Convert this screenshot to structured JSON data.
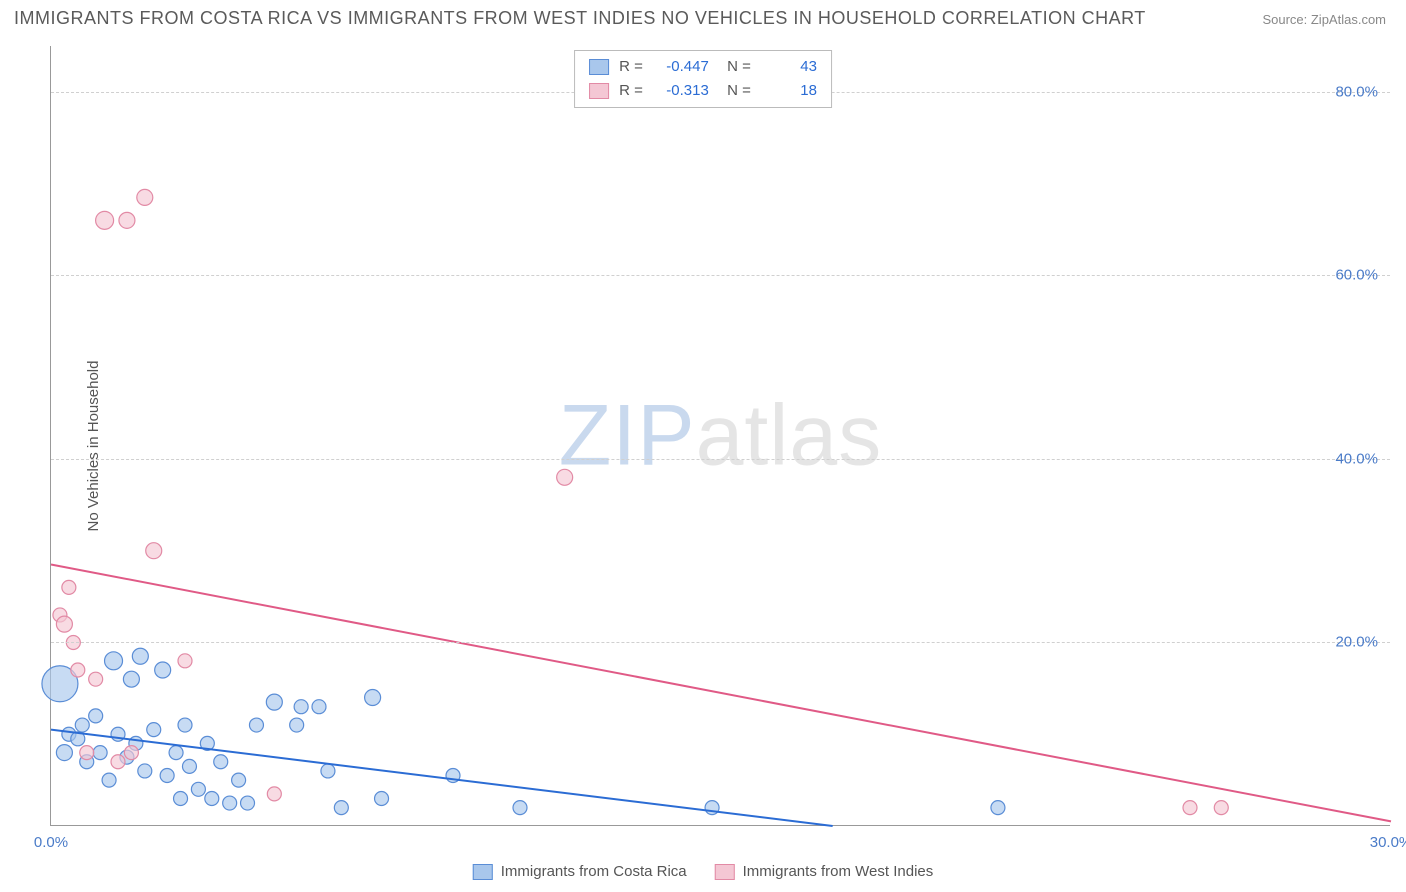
{
  "title": "IMMIGRANTS FROM COSTA RICA VS IMMIGRANTS FROM WEST INDIES NO VEHICLES IN HOUSEHOLD CORRELATION CHART",
  "source": "Source: ZipAtlas.com",
  "ylabel": "No Vehicles in Household",
  "watermark": {
    "part1": "ZIP",
    "part2": "atlas"
  },
  "chart": {
    "type": "scatter",
    "xlim": [
      0,
      30
    ],
    "ylim": [
      0,
      85
    ],
    "yticks": [
      20,
      40,
      60,
      80
    ],
    "ytick_labels": [
      "20.0%",
      "40.0%",
      "60.0%",
      "80.0%"
    ],
    "xticks": [
      0,
      30
    ],
    "xtick_labels": [
      "0.0%",
      "30.0%"
    ],
    "background_color": "#ffffff",
    "grid_color": "#d0d0d0",
    "series": [
      {
        "name": "Immigrants from Costa Rica",
        "fill": "#a9c7ec",
        "stroke": "#5a8dd6",
        "line_color": "#2b6cd4",
        "R": "-0.447",
        "N": "43",
        "trend": {
          "x1": 0,
          "y1": 10.5,
          "x2": 17.5,
          "y2": 0
        },
        "points": [
          {
            "x": 0.2,
            "y": 15.5,
            "r": 18
          },
          {
            "x": 0.3,
            "y": 8,
            "r": 8
          },
          {
            "x": 0.4,
            "y": 10,
            "r": 7
          },
          {
            "x": 0.6,
            "y": 9.5,
            "r": 7
          },
          {
            "x": 0.7,
            "y": 11,
            "r": 7
          },
          {
            "x": 0.8,
            "y": 7,
            "r": 7
          },
          {
            "x": 1.0,
            "y": 12,
            "r": 7
          },
          {
            "x": 1.1,
            "y": 8,
            "r": 7
          },
          {
            "x": 1.3,
            "y": 5,
            "r": 7
          },
          {
            "x": 1.4,
            "y": 18,
            "r": 9
          },
          {
            "x": 1.5,
            "y": 10,
            "r": 7
          },
          {
            "x": 1.7,
            "y": 7.5,
            "r": 7
          },
          {
            "x": 1.8,
            "y": 16,
            "r": 8
          },
          {
            "x": 1.9,
            "y": 9,
            "r": 7
          },
          {
            "x": 2.0,
            "y": 18.5,
            "r": 8
          },
          {
            "x": 2.1,
            "y": 6,
            "r": 7
          },
          {
            "x": 2.3,
            "y": 10.5,
            "r": 7
          },
          {
            "x": 2.5,
            "y": 17,
            "r": 8
          },
          {
            "x": 2.6,
            "y": 5.5,
            "r": 7
          },
          {
            "x": 2.8,
            "y": 8,
            "r": 7
          },
          {
            "x": 2.9,
            "y": 3,
            "r": 7
          },
          {
            "x": 3.0,
            "y": 11,
            "r": 7
          },
          {
            "x": 3.1,
            "y": 6.5,
            "r": 7
          },
          {
            "x": 3.3,
            "y": 4,
            "r": 7
          },
          {
            "x": 3.5,
            "y": 9,
            "r": 7
          },
          {
            "x": 3.6,
            "y": 3,
            "r": 7
          },
          {
            "x": 3.8,
            "y": 7,
            "r": 7
          },
          {
            "x": 4.0,
            "y": 2.5,
            "r": 7
          },
          {
            "x": 4.2,
            "y": 5,
            "r": 7
          },
          {
            "x": 4.4,
            "y": 2.5,
            "r": 7
          },
          {
            "x": 4.6,
            "y": 11,
            "r": 7
          },
          {
            "x": 5.0,
            "y": 13.5,
            "r": 8
          },
          {
            "x": 5.5,
            "y": 11,
            "r": 7
          },
          {
            "x": 5.6,
            "y": 13,
            "r": 7
          },
          {
            "x": 6.0,
            "y": 13,
            "r": 7
          },
          {
            "x": 6.2,
            "y": 6,
            "r": 7
          },
          {
            "x": 6.5,
            "y": 2,
            "r": 7
          },
          {
            "x": 7.2,
            "y": 14,
            "r": 8
          },
          {
            "x": 7.4,
            "y": 3,
            "r": 7
          },
          {
            "x": 9.0,
            "y": 5.5,
            "r": 7
          },
          {
            "x": 10.5,
            "y": 2,
            "r": 7
          },
          {
            "x": 14.8,
            "y": 2,
            "r": 7
          },
          {
            "x": 21.2,
            "y": 2,
            "r": 7
          }
        ]
      },
      {
        "name": "Immigrants from West Indies",
        "fill": "#f4c7d4",
        "stroke": "#e28aa5",
        "line_color": "#e05a86",
        "R": "-0.313",
        "N": "18",
        "trend": {
          "x1": 0,
          "y1": 28.5,
          "x2": 30,
          "y2": 0.5
        },
        "points": [
          {
            "x": 0.2,
            "y": 23,
            "r": 7
          },
          {
            "x": 0.3,
            "y": 22,
            "r": 8
          },
          {
            "x": 0.4,
            "y": 26,
            "r": 7
          },
          {
            "x": 0.5,
            "y": 20,
            "r": 7
          },
          {
            "x": 0.6,
            "y": 17,
            "r": 7
          },
          {
            "x": 0.8,
            "y": 8,
            "r": 7
          },
          {
            "x": 1.0,
            "y": 16,
            "r": 7
          },
          {
            "x": 1.2,
            "y": 66,
            "r": 9
          },
          {
            "x": 1.5,
            "y": 7,
            "r": 7
          },
          {
            "x": 1.7,
            "y": 66,
            "r": 8
          },
          {
            "x": 1.8,
            "y": 8,
            "r": 7
          },
          {
            "x": 2.1,
            "y": 68.5,
            "r": 8
          },
          {
            "x": 2.3,
            "y": 30,
            "r": 8
          },
          {
            "x": 3.0,
            "y": 18,
            "r": 7
          },
          {
            "x": 5.0,
            "y": 3.5,
            "r": 7
          },
          {
            "x": 11.5,
            "y": 38,
            "r": 8
          },
          {
            "x": 25.5,
            "y": 2,
            "r": 7
          },
          {
            "x": 26.2,
            "y": 2,
            "r": 7
          }
        ]
      }
    ]
  },
  "legend_bottom": [
    {
      "label": "Immigrants from Costa Rica",
      "fill": "#a9c7ec",
      "stroke": "#5a8dd6"
    },
    {
      "label": "Immigrants from West Indies",
      "fill": "#f4c7d4",
      "stroke": "#e28aa5"
    }
  ]
}
